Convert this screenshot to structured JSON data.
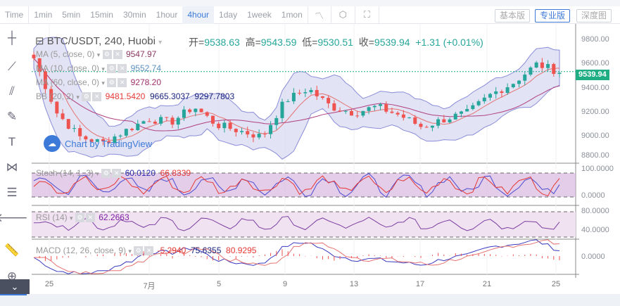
{
  "toolbar": {
    "intervals": [
      "Time",
      "1min",
      "5min",
      "15min",
      "30min",
      "1hour",
      "4hour",
      "1day",
      "1week",
      "1mon"
    ],
    "active": "4hour",
    "versions": [
      "基本版",
      "专业版",
      "深度图"
    ],
    "active_version": "专业版"
  },
  "header": {
    "symbol": "BTC/USDT, 240, Huobi",
    "open_label": "开=",
    "open": "9538.63",
    "high_label": "高=",
    "high": "9543.59",
    "low_label": "低=",
    "low": "9530.51",
    "close_label": "收=",
    "close": "9539.94",
    "change": "+1.31 (+0.01%)"
  },
  "indicators": {
    "ma5": {
      "label": "MA (5, close, 0)",
      "value": "9547.97"
    },
    "ma10": {
      "label": "MA (10, close, 0)",
      "value": "9552.74"
    },
    "ma60": {
      "label": "MA (60, close, 0)",
      "value": "9278.20"
    },
    "bb": {
      "label": "BB (20, 2)",
      "v1": "9481.5420",
      "v2": "9665.3037",
      "v3": "9297.7803"
    },
    "stoch": {
      "label": "Stoch (14, 1, 3)",
      "v1": "60.0120",
      "v2": "66.8339"
    },
    "rsi": {
      "label": "RSI (14)",
      "value": "62.2663"
    },
    "macd": {
      "label": "MACD (12, 26, close, 9)",
      "v1": "-5.2940",
      "v2": "75.6355",
      "v3": "80.9295"
    }
  },
  "watermark": "Chart by TradingView",
  "price_axis": [
    "9800.00",
    "9600.00",
    "9400.00",
    "9200.00",
    "9000.00",
    "8800.00"
  ],
  "last_price": "9539.94",
  "stoch_axis": [
    "100.0000",
    "0.0000"
  ],
  "rsi_axis": [
    "80.0000",
    "40.0000"
  ],
  "macd_axis": [
    "0.0000"
  ],
  "x_axis": [
    "25",
    "7月",
    "5",
    "9",
    "13",
    "17",
    "21",
    "25"
  ],
  "colors": {
    "up": "#26a69a",
    "down": "#ef5350",
    "accent": "#3b7ad9",
    "price_tag": "#1fae84"
  },
  "chart_data": {
    "type": "candlestick",
    "closes": [
      9650,
      9200,
      9000,
      8950,
      9050,
      9150,
      9120,
      9250,
      9100,
      9050,
      9000,
      9300,
      9400,
      9250,
      9200,
      9250,
      9180,
      9080,
      9150,
      9200,
      9350,
      9450,
      9600,
      9540
    ],
    "ylim": [
      8800,
      9800
    ]
  }
}
